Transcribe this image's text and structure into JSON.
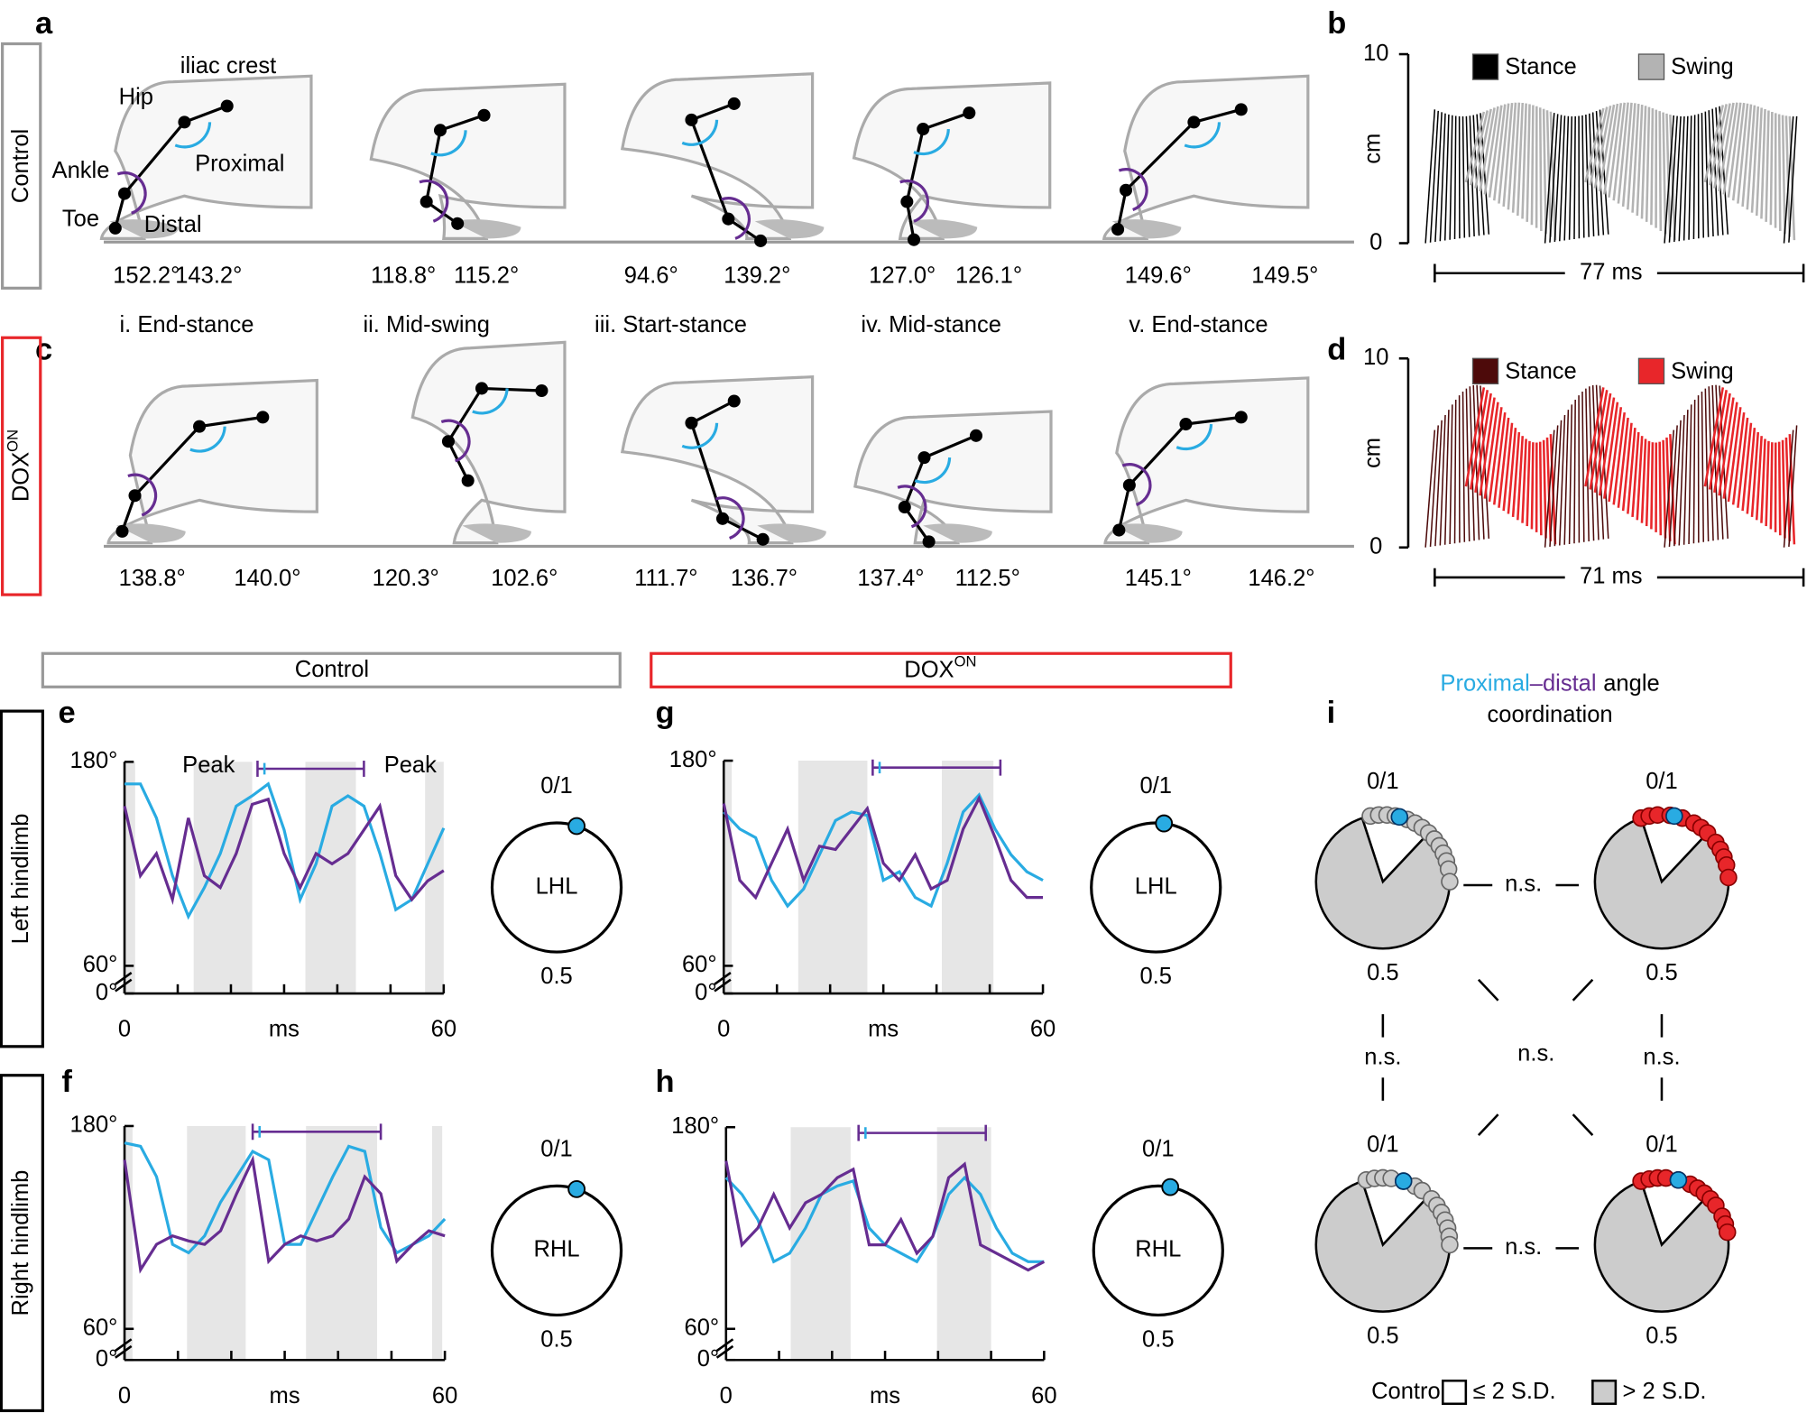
{
  "a": {
    "label": "a",
    "row": "Control",
    "landmarks": [
      "iliac crest",
      "Hip",
      "Ankle",
      "Toe"
    ],
    "proximal": "Proximal",
    "distal": "Distal",
    "proximal_angles": [
      "152.2°",
      "118.8°",
      "94.6°",
      "127.0°",
      "149.6°"
    ],
    "distal_angles": [
      "143.2°",
      "115.2°",
      "139.2°",
      "126.1°",
      "149.5°"
    ]
  },
  "phases": [
    "i. End-stance",
    "ii. Mid-swing",
    "iii. Start-stance",
    "iv. Mid-stance",
    "v. End-stance"
  ],
  "c": {
    "label": "c",
    "row": "DOX",
    "row_sup": "ON",
    "proximal_angles": [
      "138.8°",
      "120.3°",
      "111.7°",
      "137.4°",
      "145.1°"
    ],
    "distal_angles": [
      "140.0°",
      "102.6°",
      "136.7°",
      "112.5°",
      "146.2°"
    ]
  },
  "b": {
    "label": "b",
    "legend": [
      "Stance",
      "Swing"
    ],
    "colors": [
      "#000000",
      "#b3b3b3"
    ],
    "ylabel": "cm",
    "ylim": [
      0,
      10
    ],
    "yticks": [
      0,
      10
    ],
    "scale_bar": "77 ms"
  },
  "d": {
    "label": "d",
    "legend": [
      "Stance",
      "Swing"
    ],
    "colors": [
      "#4d0a0a",
      "#e8262a"
    ],
    "ylabel": "cm",
    "ylim": [
      0,
      10
    ],
    "yticks": [
      0,
      10
    ],
    "scale_bar": "71 ms"
  },
  "columns": [
    {
      "title": "Control"
    },
    {
      "title": "DOX",
      "sup": "ON"
    }
  ],
  "rows": [
    "Left hindlimb",
    "Right hindlimb"
  ],
  "trace_axes": {
    "yticks": [
      {
        "value": 180,
        "label": "180°"
      },
      {
        "value": 60,
        "label": "60°"
      },
      {
        "value": 0,
        "label": "0°"
      }
    ],
    "xlim": [
      0,
      60
    ],
    "xticks": [
      0,
      10,
      20,
      30,
      40,
      50,
      60
    ],
    "xtick_labels": [
      0,
      60
    ],
    "xlabel": "ms",
    "x": [
      0,
      3,
      6,
      9,
      12,
      15,
      18,
      21,
      24,
      27,
      30,
      33,
      36,
      39,
      42,
      45,
      48,
      51,
      54,
      57,
      60
    ],
    "circle_labels": [
      "0/1",
      "0.5"
    ]
  },
  "traces": [
    {
      "label": "e",
      "peak_labels": [
        "Peak",
        "Peak"
      ],
      "stance": [
        [
          0,
          2
        ],
        [
          13,
          24
        ],
        [
          34,
          43.5
        ],
        [
          56.5,
          60
        ]
      ],
      "peak_bar": [
        25,
        45
      ],
      "limb": "LHL",
      "phase": 0.05,
      "series": [
        {
          "color": "#29abe2",
          "values": [
            167,
            167,
            147,
            113,
            89,
            106,
            126,
            154,
            160,
            167,
            140,
            99,
            120,
            154,
            160,
            154,
            126,
            93,
            99,
            120,
            141
          ]
        },
        {
          "color": "#662d91",
          "values": [
            154,
            113,
            126,
            99,
            147,
            113,
            106,
            126,
            155,
            158,
            126,
            106,
            126,
            120,
            126,
            140,
            154,
            113,
            99,
            110,
            116
          ]
        }
      ]
    },
    {
      "label": "f",
      "stance": [
        [
          0,
          1.5
        ],
        [
          11.7,
          22.7
        ],
        [
          34,
          47.3
        ],
        [
          57.6,
          59.5
        ]
      ],
      "peak_bar": [
        24,
        48
      ],
      "limb": "RHL",
      "phase": 0.05,
      "series": [
        {
          "color": "#29abe2",
          "values": [
            170,
            168,
            150,
            110,
            105,
            115,
            135,
            150,
            165,
            160,
            110,
            110,
            130,
            150,
            168,
            165,
            120,
            105,
            110,
            115,
            125
          ]
        },
        {
          "color": "#662d91",
          "values": [
            160,
            95,
            110,
            115,
            112,
            110,
            118,
            140,
            160,
            100,
            110,
            115,
            112,
            115,
            125,
            150,
            140,
            100,
            110,
            118,
            115
          ]
        }
      ]
    },
    {
      "label": "g",
      "stance": [
        [
          0,
          1.5
        ],
        [
          14,
          27
        ],
        [
          41,
          50.7
        ]
      ],
      "peak_bar": [
        28,
        52
      ],
      "limb": "LHL",
      "phase": 0.02,
      "series": [
        {
          "color": "#29abe2",
          "values": [
            150,
            140,
            135,
            110,
            95,
            105,
            125,
            145,
            150,
            148,
            110,
            115,
            100,
            95,
            120,
            150,
            160,
            140,
            125,
            115,
            110
          ]
        },
        {
          "color": "#662d91",
          "values": [
            155,
            110,
            100,
            120,
            140,
            110,
            130,
            128,
            140,
            152,
            120,
            110,
            125,
            105,
            110,
            140,
            158,
            135,
            110,
            100,
            100
          ]
        }
      ]
    },
    {
      "label": "h",
      "stance": [
        [
          12.2,
          23.5
        ],
        [
          39.8,
          50
        ]
      ],
      "peak_bar": [
        25,
        49
      ],
      "limb": "RHL",
      "phase": 0.03,
      "series": [
        {
          "color": "#29abe2",
          "values": [
            150,
            140,
            125,
            100,
            105,
            120,
            140,
            145,
            148,
            120,
            110,
            105,
            100,
            115,
            140,
            150,
            140,
            120,
            105,
            100,
            100
          ]
        },
        {
          "color": "#662d91",
          "values": [
            160,
            110,
            120,
            140,
            120,
            135,
            140,
            150,
            155,
            110,
            110,
            125,
            105,
            115,
            150,
            158,
            110,
            105,
            100,
            95,
            100
          ]
        }
      ]
    }
  ],
  "i": {
    "label": "i",
    "title": [
      "Proximal",
      "–distal",
      "angle",
      "coordination"
    ],
    "significance": "n.s.",
    "white_sector": [
      -0.05,
      0.12
    ],
    "circles": [
      {
        "color": "#cccccc",
        "phases": [
          0.97,
          0.99,
          0.01,
          0.03,
          0.06,
          0.08,
          0.1,
          0.12,
          0.14,
          0.16,
          0.18,
          0.2,
          0.22,
          0.25
        ],
        "blue": 0.04
      },
      {
        "color": "#e8262a",
        "phases": [
          0.95,
          0.97,
          0.99,
          0.02,
          0.05,
          0.08,
          0.1,
          0.12,
          0.15,
          0.17,
          0.19,
          0.21,
          0.24
        ],
        "blue": 0.03
      },
      {
        "color": "#cccccc",
        "phases": [
          0.96,
          0.98,
          0.0,
          0.02,
          0.05,
          0.08,
          0.1,
          0.13,
          0.15,
          0.17,
          0.19,
          0.21,
          0.23,
          0.25
        ],
        "blue": 0.05
      },
      {
        "color": "#e8262a",
        "phases": [
          0.95,
          0.97,
          0.99,
          0.01,
          0.04,
          0.07,
          0.09,
          0.11,
          0.13,
          0.15,
          0.18,
          0.2,
          0.22
        ],
        "blue": 0.04
      }
    ],
    "legend_title": "Control:",
    "legend": [
      "≤ 2 S.D.",
      "> 2 S.D."
    ]
  }
}
